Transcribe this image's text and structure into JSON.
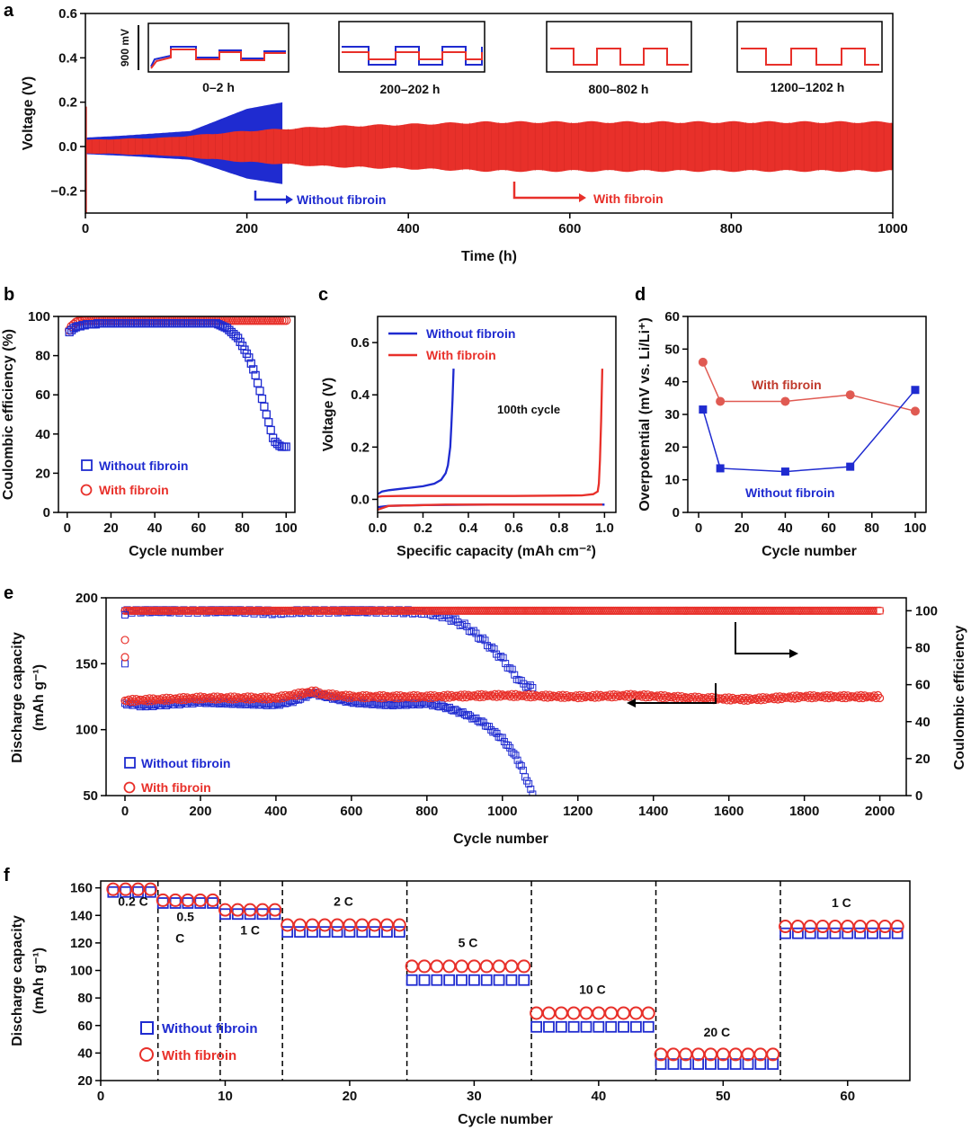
{
  "colors": {
    "without": "#1f2bd0",
    "with": "#e8302a",
    "axis": "#000000"
  },
  "legend": {
    "without": "Without fibroin",
    "with": "With fibroin"
  },
  "chart_data": [
    {
      "panel": "a",
      "type": "line",
      "xlabel": "Time  (h)",
      "ylabel": "Voltage  (V)",
      "xlim": [
        0,
        1000
      ],
      "ylim": [
        -0.3,
        0.6
      ],
      "xticks": [
        0,
        200,
        400,
        600,
        800,
        1000
      ],
      "yticks": [
        -0.2,
        0.0,
        0.2,
        0.4,
        0.6
      ],
      "ytick_labels": [
        "−0.2",
        "0.0",
        "0.2",
        "0.4",
        "0.6"
      ],
      "series": [
        {
          "name": "Without fibroin",
          "t_end": 245,
          "envelope": [
            [
              0,
              0.04
            ],
            [
              50,
              0.05
            ],
            [
              130,
              0.07
            ],
            [
              200,
              0.17
            ],
            [
              245,
              0.2
            ]
          ]
        },
        {
          "name": "With fibroin",
          "t_end": 1000,
          "envelope": [
            [
              0,
              0.03
            ],
            [
              100,
              0.04
            ],
            [
              200,
              0.07
            ],
            [
              300,
              0.09
            ],
            [
              500,
              0.11
            ],
            [
              1000,
              0.11
            ]
          ]
        }
      ],
      "annotations": {
        "without": "Without fibroin",
        "with": "With fibroin"
      },
      "insets": [
        "0–2  h",
        "200–202  h",
        "800–802  h",
        "1200–1202  h"
      ],
      "inset_scale": "900  mV"
    },
    {
      "panel": "b",
      "type": "scatter",
      "xlabel": "Cycle  number",
      "ylabel": "Coulombic  efficiency  (%)",
      "xlim": [
        0,
        100
      ],
      "ylim": [
        0,
        100
      ],
      "xticks": [
        0,
        20,
        40,
        60,
        80,
        100
      ],
      "yticks": [
        0,
        20,
        40,
        60,
        80,
        100
      ],
      "series": [
        {
          "name": "Without fibroin",
          "x": [
            1,
            2,
            3,
            4,
            5,
            6,
            7,
            8,
            9,
            10,
            11,
            12,
            13,
            14,
            15,
            16,
            17,
            18,
            19,
            20,
            21,
            22,
            23,
            24,
            25,
            26,
            27,
            28,
            29,
            30,
            31,
            32,
            33,
            34,
            35,
            36,
            37,
            38,
            39,
            40,
            41,
            42,
            43,
            44,
            45,
            46,
            47,
            48,
            49,
            50,
            51,
            52,
            53,
            54,
            55,
            56,
            57,
            58,
            59,
            60,
            61,
            62,
            63,
            64,
            65,
            66,
            67,
            68,
            69,
            70,
            71,
            72,
            73,
            74,
            75,
            76,
            77,
            78,
            79,
            80,
            81,
            82,
            83,
            84,
            85,
            86,
            87,
            88,
            89,
            90,
            91,
            92,
            93,
            94,
            95,
            96,
            97,
            98,
            99,
            100
          ],
          "y": [
            92,
            93,
            94,
            94.5,
            95,
            95,
            95.5,
            95.5,
            96,
            96,
            96,
            96,
            96,
            96.5,
            96.5,
            96.5,
            96.5,
            96.5,
            96.5,
            96.5,
            96.5,
            96.5,
            96.5,
            96.5,
            96.5,
            96.5,
            96.5,
            96.5,
            96.5,
            96.5,
            96.5,
            96.5,
            96.5,
            96.5,
            96.5,
            96.5,
            96.5,
            96.5,
            96.5,
            96.5,
            96.5,
            96.5,
            96.5,
            96.5,
            96.5,
            96.5,
            96.5,
            96.5,
            96.5,
            96.5,
            96.5,
            96.5,
            96.5,
            96.5,
            96.5,
            96.5,
            96.5,
            96.5,
            96.5,
            96.5,
            96.5,
            96.5,
            96.5,
            96.5,
            96.5,
            96.5,
            96.5,
            96.5,
            96,
            95.5,
            95,
            94.5,
            94,
            93,
            92,
            91,
            90,
            89,
            87,
            85,
            83,
            81,
            79,
            76,
            73,
            70,
            66,
            62,
            58,
            54,
            50,
            46,
            42,
            38,
            36,
            35,
            34,
            33.5,
            33.5,
            33.5
          ]
        },
        {
          "name": "With fibroin",
          "x": [
            1,
            2,
            3,
            4,
            5,
            6,
            7,
            8,
            9,
            10,
            11,
            12,
            13,
            14,
            15,
            16,
            17,
            18,
            19,
            20,
            21,
            22,
            23,
            24,
            25,
            26,
            27,
            28,
            29,
            30,
            31,
            32,
            33,
            34,
            35,
            36,
            37,
            38,
            39,
            40,
            41,
            42,
            43,
            44,
            45,
            46,
            47,
            48,
            49,
            50,
            51,
            52,
            53,
            54,
            55,
            56,
            57,
            58,
            59,
            60,
            61,
            62,
            63,
            64,
            65,
            66,
            67,
            68,
            69,
            70,
            71,
            72,
            73,
            74,
            75,
            76,
            77,
            78,
            79,
            80,
            81,
            82,
            83,
            84,
            85,
            86,
            87,
            88,
            89,
            90,
            91,
            92,
            93,
            94,
            95,
            96,
            97,
            98,
            99,
            100
          ],
          "y": [
            93,
            95,
            96,
            97,
            97.5,
            97.5,
            98,
            98,
            98,
            98,
            98,
            98,
            98,
            98,
            98,
            98,
            98,
            98,
            98,
            98,
            98,
            98,
            98,
            98,
            98,
            98,
            98,
            98,
            98,
            98,
            98,
            98,
            98,
            98,
            98,
            98,
            98,
            98,
            98,
            98,
            98,
            98,
            98,
            98,
            98,
            98,
            98,
            98,
            98,
            98,
            98,
            98,
            98,
            98,
            98,
            98,
            98,
            98,
            98,
            98,
            98,
            98,
            98,
            98,
            98,
            98,
            98,
            98,
            98,
            98,
            98,
            98,
            98,
            98,
            98,
            98,
            98,
            98,
            98,
            98,
            98,
            98,
            98,
            98,
            98,
            98,
            98,
            98,
            98,
            98,
            98,
            98,
            98,
            98,
            98,
            98,
            98,
            98,
            98,
            98
          ]
        }
      ]
    },
    {
      "panel": "c",
      "type": "line",
      "xlabel": "Specific capacity  (mAh cm⁻²)",
      "ylabel": "Voltage  (V)",
      "xlim": [
        0,
        1.05
      ],
      "ylim": [
        -0.05,
        0.7
      ],
      "xticks": [
        0,
        0.2,
        0.4,
        0.6,
        0.8,
        1.0
      ],
      "yticks": [
        0,
        0.2,
        0.4,
        0.6
      ],
      "annotation": "100th  cycle",
      "series": [
        {
          "name": "Without fibroin",
          "x": [
            0,
            0.02,
            0.05,
            0.1,
            0.15,
            0.2,
            0.25,
            0.28,
            0.3,
            0.31,
            0.32,
            0.325,
            0.33,
            0.335
          ],
          "y": [
            0.02,
            0.03,
            0.035,
            0.04,
            0.045,
            0.05,
            0.06,
            0.075,
            0.1,
            0.13,
            0.2,
            0.28,
            0.38,
            0.5
          ]
        },
        {
          "name": "Without fibroin discharge",
          "x": [
            0,
            0.05,
            0.2,
            0.5,
            0.8,
            1.0
          ],
          "y": [
            -0.03,
            -0.025,
            -0.022,
            -0.02,
            -0.02,
            -0.02
          ]
        },
        {
          "name": "With fibroin",
          "x": [
            0,
            0.02,
            0.1,
            0.3,
            0.6,
            0.9,
            0.95,
            0.97,
            0.975,
            0.98,
            0.985,
            0.99
          ],
          "y": [
            0.01,
            0.012,
            0.013,
            0.013,
            0.013,
            0.015,
            0.02,
            0.03,
            0.06,
            0.15,
            0.3,
            0.5
          ]
        },
        {
          "name": "With fibroin discharge",
          "x": [
            0,
            0.05,
            0.3,
            0.6,
            0.9,
            0.99
          ],
          "y": [
            -0.04,
            -0.025,
            -0.02,
            -0.02,
            -0.02,
            -0.02
          ]
        }
      ]
    },
    {
      "panel": "d",
      "type": "line",
      "xlabel": "Cycle  number",
      "ylabel": "Overpotential  (mV vs. Li/Li⁺)",
      "xlim": [
        -5,
        105
      ],
      "ylim": [
        0,
        60
      ],
      "xticks": [
        0,
        20,
        40,
        60,
        80,
        100
      ],
      "yticks": [
        0,
        10,
        20,
        30,
        40,
        50,
        60
      ],
      "series": [
        {
          "name": "With fibroin",
          "x": [
            2,
            10,
            40,
            70,
            100
          ],
          "y": [
            46,
            34,
            34,
            36,
            31
          ]
        },
        {
          "name": "Without fibroin",
          "x": [
            2,
            10,
            40,
            70,
            100
          ],
          "y": [
            31.5,
            13.5,
            12.5,
            14,
            37.5
          ]
        }
      ],
      "labels": {
        "with": "With  fibroin",
        "without": "Without fibroin"
      }
    },
    {
      "panel": "e",
      "type": "scatter",
      "xlabel": "Cycle  number",
      "ylabel": "Discharge capacity",
      "ylabel_unit": "(mAh g⁻¹)",
      "y2label": "Coulombic  efficiency",
      "xlim": [
        -50,
        2070
      ],
      "ylim": [
        50,
        200
      ],
      "y2lim": [
        0,
        107
      ],
      "xticks": [
        0,
        200,
        400,
        600,
        800,
        1000,
        1200,
        1400,
        1600,
        1800,
        2000
      ],
      "yticks": [
        50,
        100,
        150,
        200
      ],
      "y2ticks": [
        0,
        20,
        40,
        60,
        80,
        100
      ],
      "series": [
        {
          "name": "Without fibroin capacity",
          "x": [
            0,
            50,
            100,
            200,
            300,
            400,
            450,
            500,
            520,
            600,
            700,
            800,
            850,
            900,
            950,
            1000,
            1030,
            1050,
            1070,
            1080
          ],
          "y": [
            120,
            118,
            119,
            121,
            120,
            119,
            122,
            128,
            126,
            121,
            119,
            120,
            117,
            112,
            105,
            93,
            82,
            72,
            58,
            52
          ]
        },
        {
          "name": "With fibroin capacity",
          "x": [
            0,
            100,
            200,
            300,
            400,
            500,
            520,
            600,
            800,
            1000,
            1200,
            1350,
            1500,
            1650,
            1800,
            1900,
            2000
          ],
          "y": [
            122,
            123,
            124,
            124,
            124,
            129,
            127,
            125,
            125,
            126,
            125,
            126,
            124,
            123,
            125,
            125,
            125
          ]
        },
        {
          "name": "Without fibroin CE",
          "x": [
            0,
            100,
            200,
            300,
            400,
            500,
            600,
            700,
            800,
            850,
            900,
            950,
            1000,
            1030,
            1050,
            1080
          ],
          "y": [
            100,
            100,
            100,
            100,
            99,
            100,
            100,
            100,
            99,
            97,
            92,
            84,
            74,
            66,
            61,
            58
          ]
        },
        {
          "name": "With fibroin CE",
          "x": [
            0,
            100,
            500,
            1000,
            1500,
            2000
          ],
          "y": [
            100,
            100,
            100,
            100,
            100,
            100
          ]
        }
      ],
      "early_points": {
        "without": [
          [
            0,
            187
          ],
          [
            0,
            150
          ]
        ],
        "with": [
          [
            0,
            168
          ],
          [
            0,
            155
          ]
        ]
      }
    },
    {
      "panel": "f",
      "type": "scatter",
      "xlabel": "Cycle  number",
      "ylabel": "Discharge capacity",
      "ylabel_unit": "(mAh g⁻¹)",
      "xlim": [
        0,
        65
      ],
      "ylim": [
        20,
        165
      ],
      "xticks": [
        0,
        10,
        20,
        30,
        40,
        50,
        60
      ],
      "yticks": [
        20,
        40,
        60,
        80,
        100,
        120,
        140,
        160
      ],
      "dividers": [
        4.6,
        9.6,
        14.6,
        24.6,
        34.6,
        44.6,
        54.6
      ],
      "segments": [
        {
          "label": "0.2  C",
          "start": 1,
          "end": 4,
          "without": 157,
          "with": 159
        },
        {
          "label": "0.5",
          "label2": "C",
          "start": 5,
          "end": 9,
          "without": 149,
          "with": 151
        },
        {
          "label": "1  C",
          "start": 10,
          "end": 14,
          "without": 141,
          "with": 144
        },
        {
          "label": "2  C",
          "start": 15,
          "end": 24,
          "without": 128,
          "with": 133
        },
        {
          "label": "5  C",
          "start": 25,
          "end": 34,
          "without": 93,
          "with": 103
        },
        {
          "label": "10  C",
          "start": 35,
          "end": 44,
          "without": 59,
          "with": 69
        },
        {
          "label": "20  C",
          "start": 45,
          "end": 54,
          "without": 32,
          "with": 39
        },
        {
          "label": "1  C",
          "start": 55,
          "end": 64,
          "without": 127,
          "with": 132
        }
      ]
    }
  ],
  "panel_labels": [
    "a",
    "b",
    "c",
    "d",
    "e",
    "f"
  ]
}
